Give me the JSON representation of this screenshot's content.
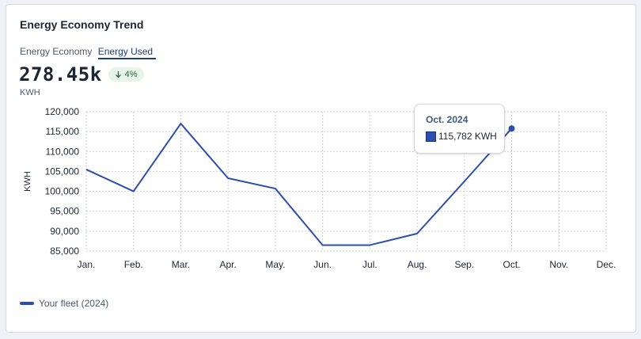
{
  "card": {
    "title": "Energy Economy Trend",
    "tabs": [
      {
        "label": "Energy Economy",
        "active": false
      },
      {
        "label": "Energy Used",
        "active": true
      }
    ],
    "kpi_value": "278.45k",
    "delta": "4%",
    "delta_icon": "arrow-down-icon",
    "unit": "KWH"
  },
  "tooltip": {
    "title": "Oct. 2024",
    "value": "115,782 KWH"
  },
  "legend": {
    "label": "Your fleet (2024)"
  },
  "colors": {
    "series": "#2b4fb0",
    "delta_bg": "#e6f4ea",
    "delta_text": "#2d6a3e"
  },
  "chart_data": {
    "type": "line",
    "categories": [
      "Jan.",
      "Feb.",
      "Mar.",
      "Apr.",
      "May.",
      "Jun.",
      "Jul.",
      "Aug.",
      "Sep.",
      "Oct.",
      "Nov.",
      "Dec."
    ],
    "series": [
      {
        "name": "Your fleet (2024)",
        "values": [
          105500,
          100000,
          117000,
          103300,
          100700,
          86500,
          86500,
          89400,
          102500,
          115782,
          null,
          null
        ]
      }
    ],
    "ylabel": "KWH",
    "ylim": [
      85000,
      120000
    ],
    "yticks": [
      85000,
      90000,
      95000,
      100000,
      105000,
      110000,
      115000,
      120000
    ],
    "ytick_labels": [
      "85,000",
      "90,000",
      "95,000",
      "100,000",
      "105,000",
      "110,000",
      "115,000",
      "120,000"
    ],
    "grid": true,
    "highlight_index": 9
  }
}
